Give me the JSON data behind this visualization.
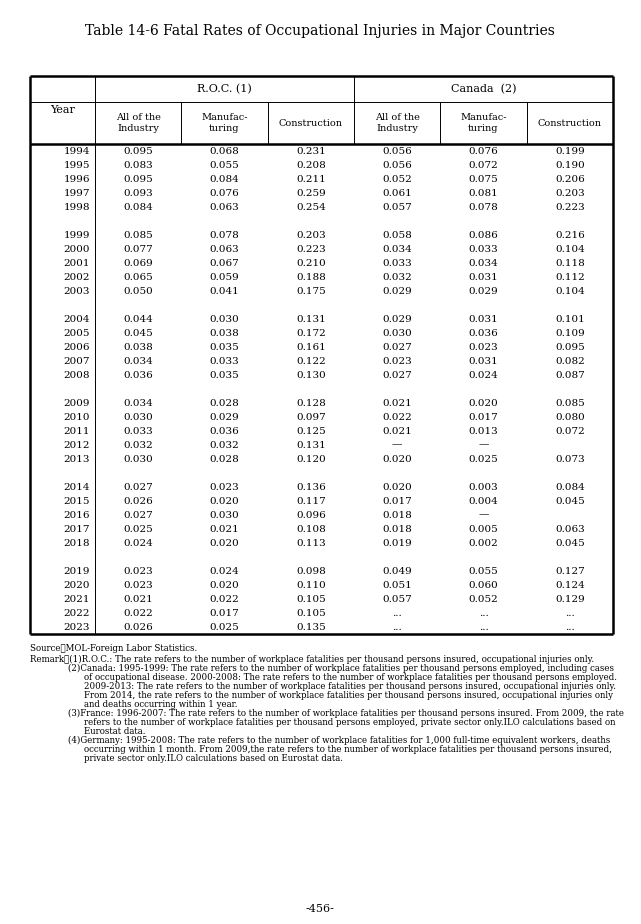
{
  "title": "Table 14-6 Fatal Rates of Occupational Injuries in Major Countries",
  "col_group1": "R.O.C. (1)",
  "col_group2": "Canada  (2)",
  "sub_col1": "All of the\nIndustry",
  "sub_col2": "Manufac-\nturing",
  "sub_col3": "Construction",
  "sub_col4": "All of the\nIndustry",
  "sub_col5": "Manufac-\nturing",
  "sub_col6": "Construction",
  "year_label": "Year",
  "rows": [
    [
      "1994",
      "0.095",
      "0.068",
      "0.231",
      "0.056",
      "0.076",
      "0.199"
    ],
    [
      "1995",
      "0.083",
      "0.055",
      "0.208",
      "0.056",
      "0.072",
      "0.190"
    ],
    [
      "1996",
      "0.095",
      "0.084",
      "0.211",
      "0.052",
      "0.075",
      "0.206"
    ],
    [
      "1997",
      "0.093",
      "0.076",
      "0.259",
      "0.061",
      "0.081",
      "0.203"
    ],
    [
      "1998",
      "0.084",
      "0.063",
      "0.254",
      "0.057",
      "0.078",
      "0.223"
    ],
    [
      "",
      "",
      "",
      "",
      "",
      "",
      ""
    ],
    [
      "1999",
      "0.085",
      "0.078",
      "0.203",
      "0.058",
      "0.086",
      "0.216"
    ],
    [
      "2000",
      "0.077",
      "0.063",
      "0.223",
      "0.034",
      "0.033",
      "0.104"
    ],
    [
      "2001",
      "0.069",
      "0.067",
      "0.210",
      "0.033",
      "0.034",
      "0.118"
    ],
    [
      "2002",
      "0.065",
      "0.059",
      "0.188",
      "0.032",
      "0.031",
      "0.112"
    ],
    [
      "2003",
      "0.050",
      "0.041",
      "0.175",
      "0.029",
      "0.029",
      "0.104"
    ],
    [
      "",
      "",
      "",
      "",
      "",
      "",
      ""
    ],
    [
      "2004",
      "0.044",
      "0.030",
      "0.131",
      "0.029",
      "0.031",
      "0.101"
    ],
    [
      "2005",
      "0.045",
      "0.038",
      "0.172",
      "0.030",
      "0.036",
      "0.109"
    ],
    [
      "2006",
      "0.038",
      "0.035",
      "0.161",
      "0.027",
      "0.023",
      "0.095"
    ],
    [
      "2007",
      "0.034",
      "0.033",
      "0.122",
      "0.023",
      "0.031",
      "0.082"
    ],
    [
      "2008",
      "0.036",
      "0.035",
      "0.130",
      "0.027",
      "0.024",
      "0.087"
    ],
    [
      "",
      "",
      "",
      "",
      "",
      "",
      ""
    ],
    [
      "2009",
      "0.034",
      "0.028",
      "0.128",
      "0.021",
      "0.020",
      "0.085"
    ],
    [
      "2010",
      "0.030",
      "0.029",
      "0.097",
      "0.022",
      "0.017",
      "0.080"
    ],
    [
      "2011",
      "0.033",
      "0.036",
      "0.125",
      "0.021",
      "0.013",
      "0.072"
    ],
    [
      "2012",
      "0.032",
      "0.032",
      "0.131",
      "—",
      "—",
      ""
    ],
    [
      "2013",
      "0.030",
      "0.028",
      "0.120",
      "0.020",
      "0.025",
      "0.073"
    ],
    [
      "",
      "",
      "",
      "",
      "",
      "",
      ""
    ],
    [
      "2014",
      "0.027",
      "0.023",
      "0.136",
      "0.020",
      "0.003",
      "0.084"
    ],
    [
      "2015",
      "0.026",
      "0.020",
      "0.117",
      "0.017",
      "0.004",
      "0.045"
    ],
    [
      "2016",
      "0.027",
      "0.030",
      "0.096",
      "0.018",
      "—",
      ""
    ],
    [
      "2017",
      "0.025",
      "0.021",
      "0.108",
      "0.018",
      "0.005",
      "0.063"
    ],
    [
      "2018",
      "0.024",
      "0.020",
      "0.113",
      "0.019",
      "0.002",
      "0.045"
    ],
    [
      "",
      "",
      "",
      "",
      "",
      "",
      ""
    ],
    [
      "2019",
      "0.023",
      "0.024",
      "0.098",
      "0.049",
      "0.055",
      "0.127"
    ],
    [
      "2020",
      "0.023",
      "0.020",
      "0.110",
      "0.051",
      "0.060",
      "0.124"
    ],
    [
      "2021",
      "0.021",
      "0.022",
      "0.105",
      "0.057",
      "0.052",
      "0.129"
    ],
    [
      "2022",
      "0.022",
      "0.017",
      "0.105",
      "...",
      "...",
      "..."
    ],
    [
      "2023",
      "0.026",
      "0.025",
      "0.135",
      "...",
      "...",
      "..."
    ]
  ],
  "source_line": "Source：MOL-Foreign Labor Statistics.",
  "remark_label": "Remark：",
  "remark_items": [
    "(1)R.O.C.: The rate refers to the number of workplace fatalities per thousand persons insured, occupational injuries only.",
    "(2)Canada: 1995-1999: The rate refers to the number of workplace fatalities per thousand persons employed, including cases\n        of occupational disease. 2000-2008: The rate refers to the number of workplace fatalities per thousand persons employed.\n        2009-2013: The rate refers to the number of workplace fatalities per thousand persons insured, occupational injuries only.\n        From 2014, the rate refers to the number of workplace fatalities per thousand persons insured, occupational injuries only\n        and deaths occurring within 1 year.",
    "(3)France: 1996-2007: The rate refers to the number of workplace fatalities per thousand persons insured. From 2009, the rate\n        refers to the number of workplace fatalities per thousand persons employed, private sector only.ILO calculations based on\n        Eurostat data.",
    "(4)Germany: 1995-2008: The rate refers to the number of workplace fatalities for 1,000 full-time equivalent workers, deaths\n        occurring within 1 month. From 2009,the rate refers to the number of workplace fatalities per thousand persons insured,\n        private sector only.ILO calculations based on Eurostat data."
  ],
  "page_number": "-456-"
}
